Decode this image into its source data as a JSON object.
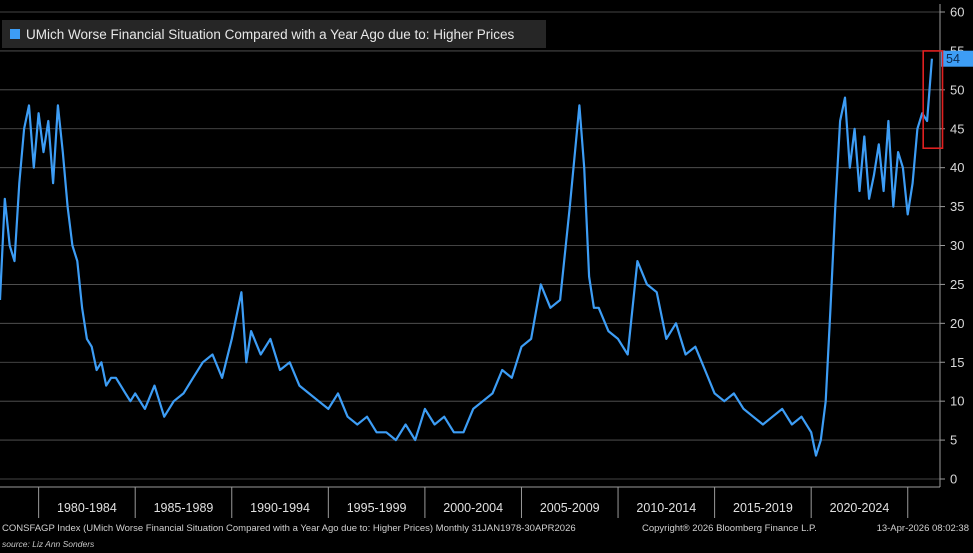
{
  "chart_data": {
    "type": "line",
    "title": "UMich Worse Financial Situation Compared with a Year Ago due to: Higher Prices",
    "series": [
      {
        "name": "UMich Worse Financial Situation Compared with a Year Ago due to: Higher Prices",
        "color": "#3d9df5",
        "x": [
          1978.0,
          1978.25,
          1978.5,
          1978.75,
          1979.0,
          1979.25,
          1979.5,
          1979.75,
          1980.0,
          1980.25,
          1980.5,
          1980.75,
          1981.0,
          1981.25,
          1981.5,
          1981.75,
          1982.0,
          1982.25,
          1982.5,
          1982.75,
          1983.0,
          1983.25,
          1983.5,
          1983.75,
          1984.0,
          1984.25,
          1984.5,
          1984.75,
          1985.0,
          1985.5,
          1986.0,
          1986.5,
          1987.0,
          1987.5,
          1988.0,
          1988.5,
          1989.0,
          1989.5,
          1990.0,
          1990.5,
          1990.75,
          1991.0,
          1991.5,
          1992.0,
          1992.5,
          1993.0,
          1993.5,
          1994.0,
          1994.5,
          1995.0,
          1995.5,
          1996.0,
          1996.5,
          1997.0,
          1997.5,
          1998.0,
          1998.5,
          1999.0,
          1999.5,
          2000.0,
          2000.5,
          2001.0,
          2001.5,
          2002.0,
          2002.5,
          2003.0,
          2003.5,
          2004.0,
          2004.5,
          2005.0,
          2005.5,
          2006.0,
          2006.5,
          2007.0,
          2007.5,
          2008.0,
          2008.25,
          2008.5,
          2008.75,
          2009.0,
          2009.5,
          2010.0,
          2010.5,
          2011.0,
          2011.5,
          2012.0,
          2012.5,
          2013.0,
          2013.5,
          2014.0,
          2014.5,
          2015.0,
          2015.5,
          2016.0,
          2016.5,
          2017.0,
          2017.5,
          2018.0,
          2018.5,
          2019.0,
          2019.5,
          2020.0,
          2020.25,
          2020.5,
          2020.75,
          2021.0,
          2021.25,
          2021.5,
          2021.75,
          2022.0,
          2022.25,
          2022.5,
          2022.75,
          2023.0,
          2023.25,
          2023.5,
          2023.75,
          2024.0,
          2024.25,
          2024.5,
          2024.75,
          2025.0,
          2025.25,
          2025.5,
          2025.75,
          2026.0,
          2026.25
        ],
        "values": [
          23,
          36,
          30,
          28,
          38,
          45,
          48,
          40,
          47,
          42,
          46,
          38,
          48,
          42,
          35,
          30,
          28,
          22,
          18,
          17,
          14,
          15,
          12,
          13,
          13,
          12,
          11,
          10,
          11,
          9,
          12,
          8,
          10,
          11,
          13,
          15,
          16,
          13,
          18,
          24,
          15,
          19,
          16,
          18,
          14,
          15,
          12,
          11,
          10,
          9,
          11,
          8,
          7,
          8,
          6,
          6,
          5,
          7,
          5,
          9,
          7,
          8,
          6,
          6,
          9,
          10,
          11,
          14,
          13,
          17,
          18,
          25,
          22,
          23,
          35,
          48,
          40,
          26,
          22,
          22,
          19,
          18,
          16,
          28,
          25,
          24,
          18,
          20,
          16,
          17,
          14,
          11,
          10,
          11,
          9,
          8,
          7,
          8,
          9,
          7,
          8,
          6,
          3,
          5,
          10,
          22,
          35,
          46,
          49,
          40,
          45,
          37,
          44,
          36,
          39,
          43,
          37,
          46,
          35,
          42,
          40,
          34,
          38,
          45,
          47,
          46,
          54
        ],
        "last_value_label": "54"
      }
    ],
    "xlim": [
      1978.0,
      2026.67
    ],
    "ylim": [
      0,
      60
    ],
    "y_ticks": [
      0,
      5,
      10,
      15,
      20,
      25,
      30,
      35,
      40,
      45,
      50,
      55,
      60
    ],
    "x_categories": [
      "1980-1984",
      "1985-1989",
      "1990-1994",
      "1995-1999",
      "2000-2004",
      "2005-2009",
      "2010-2014",
      "2015-2019",
      "2020-2024"
    ],
    "x_category_ranges": [
      [
        1980,
        1985
      ],
      [
        1985,
        1990
      ],
      [
        1990,
        1995
      ],
      [
        1995,
        2000
      ],
      [
        2000,
        2005
      ],
      [
        2005,
        2010
      ],
      [
        2010,
        2015
      ],
      [
        2015,
        2020
      ],
      [
        2020,
        2025
      ]
    ],
    "highlight_box": {
      "x_range": [
        2025.8,
        2026.8
      ],
      "y_range": [
        42.5,
        55.0
      ],
      "color": "#e02020"
    },
    "grid": true,
    "legend": "top-left",
    "xlabel": "",
    "ylabel": ""
  },
  "footer": {
    "left": "CONSFAGP Index (UMich Worse Financial Situation Compared with a Year Ago due to: Higher Prices) Monthly 31JAN1978-30APR2026",
    "copyright": "Copyright® 2026 Bloomberg Finance L.P.",
    "timestamp": "13-Apr-2026 08:02:38",
    "source": "source: Liz Ann Sonders"
  }
}
